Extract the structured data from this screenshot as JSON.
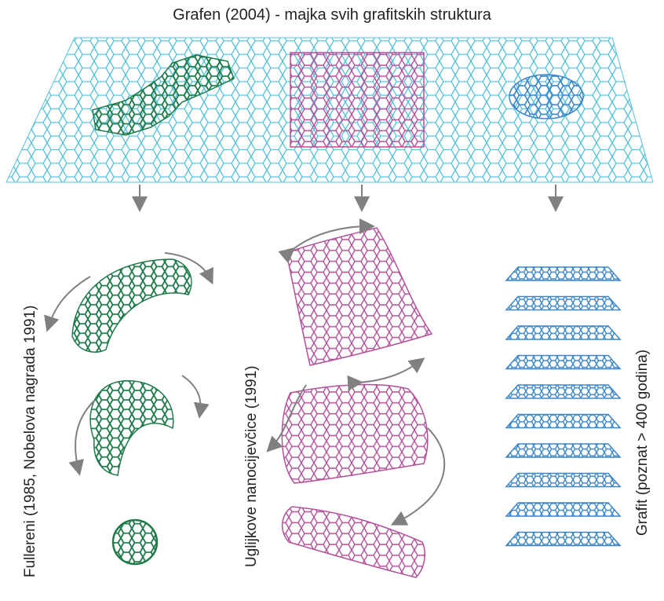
{
  "title": "Grafen (2004) - majka svih grafitskih struktura",
  "labels": {
    "fullerenes": "Fullereni (1985, Nobelova nagrada 1991)",
    "nanotubes": "Uglijkove nanocijevčice (1991)",
    "graphite": "Grafit (poznat > 400 godina)"
  },
  "colors": {
    "graphene": "#55c2df",
    "fullerene": "#1f7a4a",
    "nanotube": "#b4509a",
    "graphite": "#3d86c8",
    "arrow": "#808080"
  },
  "graphite_layer_count": 10
}
